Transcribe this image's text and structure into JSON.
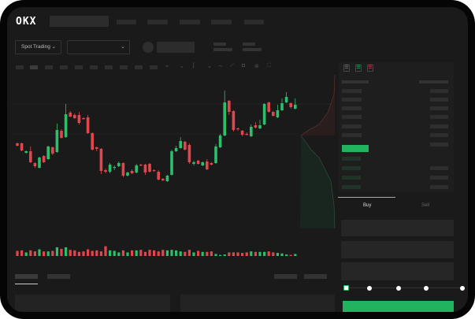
{
  "header": {
    "logo": "OKX",
    "nav_items": 5
  },
  "toolbar": {
    "market_type": "Spot Trading",
    "pair_select": "",
    "chevron": "⌄"
  },
  "orderbook": {
    "icons": [
      "orderbook-both-icon",
      "orderbook-buy-icon",
      "orderbook-sell-icon"
    ]
  },
  "trade": {
    "tabs": [
      "Buy",
      "Sell"
    ],
    "active_tab": "Buy",
    "slider_percent": 0
  },
  "colors": {
    "up": "#2ebd6b",
    "down": "#e0474c",
    "accent": "#22b35e",
    "background": "#1a1a1a"
  },
  "chart_data": {
    "type": "candlestick",
    "candles": [
      [
        68,
        65,
        69,
        64
      ],
      [
        68,
        59,
        69,
        58
      ],
      [
        56,
        58,
        59,
        55
      ],
      [
        58,
        44,
        64,
        43
      ],
      [
        43,
        39,
        44,
        37
      ],
      [
        37,
        50,
        51,
        36
      ],
      [
        52,
        44,
        53,
        43
      ],
      [
        48,
        64,
        65,
        47
      ],
      [
        63,
        55,
        64,
        53
      ],
      [
        57,
        85,
        93,
        56
      ],
      [
        84,
        75,
        86,
        74
      ],
      [
        76,
        105,
        118,
        75
      ],
      [
        107,
        102,
        109,
        101
      ],
      [
        104,
        100,
        106,
        99
      ],
      [
        104,
        94,
        108,
        92
      ],
      [
        100,
        99,
        101,
        98
      ],
      [
        101,
        81,
        104,
        80
      ],
      [
        81,
        60,
        82,
        59
      ],
      [
        63,
        61,
        64,
        58
      ],
      [
        61,
        33,
        62,
        29
      ],
      [
        34,
        32,
        36,
        30
      ],
      [
        32,
        41,
        43,
        30
      ],
      [
        37,
        38,
        40,
        34
      ],
      [
        39,
        43,
        45,
        38
      ],
      [
        43,
        27,
        44,
        25
      ],
      [
        27,
        31,
        32,
        26
      ],
      [
        33,
        30,
        35,
        29
      ],
      [
        31,
        40,
        42,
        30
      ],
      [
        41,
        40,
        42,
        39
      ],
      [
        41,
        31,
        42,
        28
      ],
      [
        42,
        32,
        43,
        31
      ],
      [
        34,
        33,
        35,
        32
      ],
      [
        32,
        22,
        34,
        21
      ],
      [
        23,
        21,
        24,
        20
      ],
      [
        20,
        27,
        28,
        19
      ],
      [
        28,
        58,
        60,
        27
      ],
      [
        58,
        62,
        65,
        57
      ],
      [
        62,
        71,
        76,
        61
      ],
      [
        70,
        60,
        71,
        59
      ],
      [
        66,
        44,
        68,
        42
      ],
      [
        42,
        44,
        46,
        40
      ],
      [
        46,
        42,
        47,
        41
      ],
      [
        40,
        44,
        45,
        39
      ],
      [
        45,
        35,
        48,
        34
      ],
      [
        43,
        41,
        44,
        40
      ],
      [
        43,
        64,
        67,
        42
      ],
      [
        63,
        78,
        80,
        62
      ],
      [
        78,
        120,
        135,
        77
      ],
      [
        122,
        108,
        123,
        104
      ],
      [
        109,
        85,
        110,
        83
      ],
      [
        87,
        86,
        88,
        84
      ],
      [
        84,
        79,
        85,
        77
      ],
      [
        80,
        79,
        82,
        78
      ],
      [
        77,
        89,
        92,
        76
      ],
      [
        91,
        88,
        95,
        87
      ],
      [
        87,
        91,
        98,
        86
      ],
      [
        92,
        118,
        119,
        91
      ],
      [
        120,
        108,
        121,
        107
      ],
      [
        108,
        103,
        109,
        102
      ],
      [
        101,
        110,
        117,
        100
      ],
      [
        110,
        119,
        125,
        109
      ],
      [
        120,
        127,
        133,
        119
      ],
      [
        119,
        114,
        120,
        112
      ],
      [
        112,
        117,
        125,
        111
      ]
    ],
    "volume": [
      10,
      11,
      7,
      11,
      9,
      13,
      9,
      9,
      10,
      17,
      14,
      17,
      12,
      11,
      8,
      9,
      13,
      10,
      11,
      9,
      19,
      11,
      10,
      7,
      11,
      7,
      11,
      11,
      12,
      8,
      12,
      11,
      9,
      12,
      11,
      12,
      11,
      9,
      8,
      12,
      7,
      10,
      8,
      8,
      9,
      4,
      2,
      3,
      7,
      7,
      7,
      6,
      7,
      9,
      8,
      8,
      8,
      9,
      7,
      6,
      5,
      3,
      2,
      4
    ]
  }
}
